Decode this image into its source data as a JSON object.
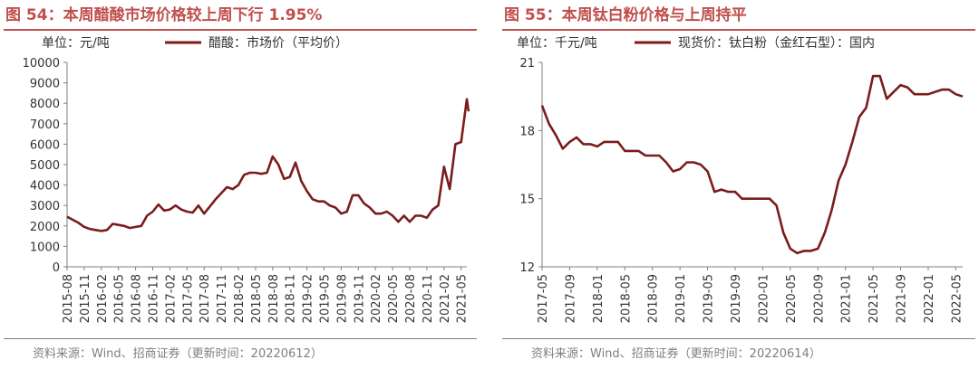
{
  "charts": [
    {
      "title": "图 54：本周醋酸市场价格较上周下行 1.95%",
      "unit": "单位：元/吨",
      "source": "资料来源：Wind、招商证券（更新时间：20220612）",
      "colors": {
        "title": "#c0504d",
        "line": "#7b1c1c",
        "axis": "#7f7f7f",
        "text": "#333333"
      }
    },
    {
      "title": "图 55：本周钛白粉价格与上周持平",
      "unit": "单位：千元/吨",
      "source": "资料来源：Wind、招商证券（更新时间：20220614）",
      "colors": {
        "title": "#c0504d",
        "line": "#7b1c1c",
        "axis": "#7f7f7f",
        "text": "#333333"
      }
    }
  ],
  "chart_data": [
    {
      "type": "line",
      "series": [
        {
          "name": "醋酸：市场价（平均价）"
        }
      ],
      "ylim": [
        0,
        10000
      ],
      "yticks": [
        0,
        1000,
        2000,
        3000,
        4000,
        5000,
        6000,
        7000,
        8000,
        9000,
        10000
      ],
      "xlim": [
        "2015-08",
        "2021-06"
      ],
      "xticks": [
        "2015-08",
        "2015-11",
        "2016-02",
        "2016-05",
        "2016-08",
        "2016-11",
        "2017-02",
        "2017-05",
        "2017-08",
        "2017-11",
        "2018-02",
        "2018-05",
        "2018-08",
        "2018-11",
        "2019-02",
        "2019-05",
        "2019-08",
        "2019-11",
        "2020-02",
        "2020-05",
        "2020-08",
        "2020-11",
        "2021-02",
        "2021-05"
      ],
      "legend_position": "top",
      "grid": false,
      "points": [
        [
          "2015-08",
          2450
        ],
        [
          "2015-09",
          2300
        ],
        [
          "2015-10",
          2150
        ],
        [
          "2015-11",
          1950
        ],
        [
          "2015-12",
          1850
        ],
        [
          "2016-01",
          1800
        ],
        [
          "2016-02",
          1750
        ],
        [
          "2016-03",
          1800
        ],
        [
          "2016-04",
          2100
        ],
        [
          "2016-05",
          2050
        ],
        [
          "2016-06",
          2000
        ],
        [
          "2016-07",
          1900
        ],
        [
          "2016-08",
          1950
        ],
        [
          "2016-09",
          2000
        ],
        [
          "2016-10",
          2500
        ],
        [
          "2016-11",
          2700
        ],
        [
          "2016-12",
          3050
        ],
        [
          "2017-01",
          2750
        ],
        [
          "2017-02",
          2800
        ],
        [
          "2017-03",
          3000
        ],
        [
          "2017-04",
          2800
        ],
        [
          "2017-05",
          2700
        ],
        [
          "2017-06",
          2650
        ],
        [
          "2017-07",
          3000
        ],
        [
          "2017-08",
          2600
        ],
        [
          "2017-09",
          2950
        ],
        [
          "2017-10",
          3300
        ],
        [
          "2017-11",
          3600
        ],
        [
          "2017-12",
          3900
        ],
        [
          "2018-01",
          3800
        ],
        [
          "2018-02",
          4000
        ],
        [
          "2018-03",
          4500
        ],
        [
          "2018-04",
          4600
        ],
        [
          "2018-05",
          4600
        ],
        [
          "2018-06",
          4550
        ],
        [
          "2018-07",
          4600
        ],
        [
          "2018-08",
          5400
        ],
        [
          "2018-09",
          5000
        ],
        [
          "2018-10",
          4300
        ],
        [
          "2018-11",
          4400
        ],
        [
          "2018-12",
          5100
        ],
        [
          "2019-01",
          4200
        ],
        [
          "2019-02",
          3700
        ],
        [
          "2019-03",
          3300
        ],
        [
          "2019-04",
          3200
        ],
        [
          "2019-05",
          3200
        ],
        [
          "2019-06",
          3000
        ],
        [
          "2019-07",
          2900
        ],
        [
          "2019-08",
          2600
        ],
        [
          "2019-09",
          2700
        ],
        [
          "2019-10",
          3500
        ],
        [
          "2019-11",
          3500
        ],
        [
          "2019-12",
          3100
        ],
        [
          "2020-01",
          2900
        ],
        [
          "2020-02",
          2600
        ],
        [
          "2020-03",
          2600
        ],
        [
          "2020-04",
          2700
        ],
        [
          "2020-05",
          2500
        ],
        [
          "2020-06",
          2200
        ],
        [
          "2020-07",
          2500
        ],
        [
          "2020-08",
          2200
        ],
        [
          "2020-09",
          2500
        ],
        [
          "2020-10",
          2500
        ],
        [
          "2020-11",
          2400
        ],
        [
          "2020-12",
          2800
        ],
        [
          "2021-01",
          3000
        ],
        [
          "2021-02",
          4900
        ],
        [
          "2021-03",
          3800
        ],
        [
          "2021-04",
          6000
        ],
        [
          "2021-05",
          6100
        ],
        [
          "2021-06",
          8200
        ],
        [
          "2021-06-10",
          7600
        ]
      ]
    },
    {
      "type": "line",
      "series": [
        {
          "name": "现货价：钛白粉（金红石型）：国内"
        }
      ],
      "ylim": [
        12,
        21
      ],
      "yticks": [
        12,
        15,
        18,
        21
      ],
      "xlim": [
        "2017-05",
        "2022-06"
      ],
      "xticks": [
        "2017-05",
        "2017-09",
        "2018-01",
        "2018-05",
        "2018-09",
        "2019-01",
        "2019-05",
        "2019-09",
        "2020-01",
        "2020-05",
        "2020-09",
        "2021-01",
        "2021-05",
        "2021-09",
        "2022-01",
        "2022-05"
      ],
      "legend_position": "top",
      "grid": false,
      "points": [
        [
          "2017-05",
          19.1
        ],
        [
          "2017-06",
          18.3
        ],
        [
          "2017-07",
          17.8
        ],
        [
          "2017-08",
          17.2
        ],
        [
          "2017-09",
          17.5
        ],
        [
          "2017-10",
          17.7
        ],
        [
          "2017-11",
          17.4
        ],
        [
          "2017-12",
          17.4
        ],
        [
          "2018-01",
          17.3
        ],
        [
          "2018-02",
          17.5
        ],
        [
          "2018-03",
          17.5
        ],
        [
          "2018-04",
          17.5
        ],
        [
          "2018-05",
          17.1
        ],
        [
          "2018-06",
          17.1
        ],
        [
          "2018-07",
          17.1
        ],
        [
          "2018-08",
          16.9
        ],
        [
          "2018-09",
          16.9
        ],
        [
          "2018-10",
          16.9
        ],
        [
          "2018-11",
          16.6
        ],
        [
          "2018-12",
          16.2
        ],
        [
          "2019-01",
          16.3
        ],
        [
          "2019-02",
          16.6
        ],
        [
          "2019-03",
          16.6
        ],
        [
          "2019-04",
          16.5
        ],
        [
          "2019-05",
          16.2
        ],
        [
          "2019-06",
          15.3
        ],
        [
          "2019-07",
          15.4
        ],
        [
          "2019-08",
          15.3
        ],
        [
          "2019-09",
          15.3
        ],
        [
          "2019-10",
          15.0
        ],
        [
          "2019-11",
          15.0
        ],
        [
          "2019-12",
          15.0
        ],
        [
          "2020-01",
          15.0
        ],
        [
          "2020-02",
          15.0
        ],
        [
          "2020-03",
          14.7
        ],
        [
          "2020-04",
          13.5
        ],
        [
          "2020-05",
          12.8
        ],
        [
          "2020-06",
          12.6
        ],
        [
          "2020-07",
          12.7
        ],
        [
          "2020-08",
          12.7
        ],
        [
          "2020-09",
          12.8
        ],
        [
          "2020-10",
          13.5
        ],
        [
          "2020-11",
          14.5
        ],
        [
          "2020-12",
          15.8
        ],
        [
          "2021-01",
          16.5
        ],
        [
          "2021-02",
          17.5
        ],
        [
          "2021-03",
          18.6
        ],
        [
          "2021-04",
          19.0
        ],
        [
          "2021-05",
          20.4
        ],
        [
          "2021-06",
          20.4
        ],
        [
          "2021-07",
          19.4
        ],
        [
          "2021-08",
          19.7
        ],
        [
          "2021-09",
          20.0
        ],
        [
          "2021-10",
          19.9
        ],
        [
          "2021-11",
          19.6
        ],
        [
          "2021-12",
          19.6
        ],
        [
          "2022-01",
          19.6
        ],
        [
          "2022-02",
          19.7
        ],
        [
          "2022-03",
          19.8
        ],
        [
          "2022-04",
          19.8
        ],
        [
          "2022-05",
          19.6
        ],
        [
          "2022-06",
          19.5
        ]
      ]
    }
  ]
}
